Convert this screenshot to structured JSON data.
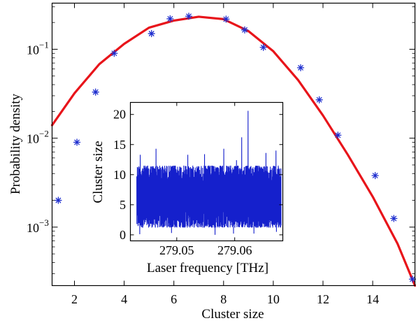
{
  "chart_data": [
    {
      "type": "scatter",
      "title": "",
      "xlabel": "Cluster size",
      "ylabel": "Probability density",
      "x_scale": "linear",
      "y_scale": "log",
      "xlim": [
        1.1,
        15.7
      ],
      "ylim": [
        0.00022,
        0.33
      ],
      "xticks": [
        2,
        4,
        6,
        8,
        10,
        12,
        14
      ],
      "xtick_labels": [
        "2",
        "4",
        "6",
        "8",
        "10",
        "12",
        "14"
      ],
      "yticks": [
        0.001,
        0.01,
        0.1
      ],
      "ytick_labels": [
        {
          "base": "10",
          "exp": "−3"
        },
        {
          "base": "10",
          "exp": "−2"
        },
        {
          "base": "10",
          "exp": "−1"
        }
      ],
      "grid": false,
      "series": [
        {
          "style": "markers",
          "marker": "asterisk",
          "color": "#1f2fcf",
          "points": [
            [
              1.35,
              0.002
            ],
            [
              2.1,
              0.009
            ],
            [
              2.85,
              0.033
            ],
            [
              3.6,
              0.09
            ],
            [
              5.1,
              0.15
            ],
            [
              5.85,
              0.22
            ],
            [
              6.6,
              0.235
            ],
            [
              8.1,
              0.218
            ],
            [
              8.85,
              0.165
            ],
            [
              9.6,
              0.105
            ],
            [
              11.1,
              0.062
            ],
            [
              11.85,
              0.027
            ],
            [
              12.6,
              0.0108
            ],
            [
              14.1,
              0.0038
            ],
            [
              14.85,
              0.00125
            ],
            [
              15.6,
              0.00026
            ]
          ]
        },
        {
          "style": "line",
          "color": "#e8141a",
          "points": [
            [
              1.1,
              0.014
            ],
            [
              2.0,
              0.032
            ],
            [
              3.0,
              0.068
            ],
            [
              4.0,
              0.115
            ],
            [
              5.0,
              0.175
            ],
            [
              6.0,
              0.21
            ],
            [
              7.0,
              0.232
            ],
            [
              8.0,
              0.218
            ],
            [
              9.0,
              0.16
            ],
            [
              10.0,
              0.095
            ],
            [
              11.0,
              0.045
            ],
            [
              12.0,
              0.018
            ],
            [
              13.0,
              0.0065
            ],
            [
              14.0,
              0.0022
            ],
            [
              15.0,
              0.00065
            ],
            [
              15.7,
              0.00022
            ]
          ]
        }
      ]
    },
    {
      "type": "line",
      "title": "",
      "xlabel": "Laser frequency [THz]",
      "ylabel": "Cluster size",
      "xlim": [
        279.042,
        279.0683
      ],
      "ylim": [
        -1,
        22
      ],
      "xticks": [
        279.05,
        279.06
      ],
      "xtick_labels": [
        "279.05",
        "279.06"
      ],
      "yticks": [
        0,
        5,
        10,
        15,
        20
      ],
      "ytick_labels": [
        "0",
        "5",
        "10",
        "15",
        "20"
      ],
      "grid": false,
      "series": [
        {
          "style": "noisy-band",
          "color": "#1520cc",
          "base_low": 1.2,
          "base_high": 11.5,
          "spikes": [
            [
              279.0437,
              13.3
            ],
            [
              279.0464,
              14.3
            ],
            [
              279.0497,
              11.5
            ],
            [
              279.0519,
              13.3
            ],
            [
              279.0548,
              13.4
            ],
            [
              279.0581,
              14.3
            ],
            [
              279.0603,
              12.4
            ],
            [
              279.0612,
              16.2
            ],
            [
              279.0623,
              20.6
            ],
            [
              279.0654,
              13.6
            ],
            [
              279.0671,
              14.0
            ]
          ],
          "dips": [
            [
              279.0436,
              0.1
            ],
            [
              279.0491,
              0.3
            ],
            [
              279.0566,
              0.0
            ],
            [
              279.0598,
              0.2
            ],
            [
              279.0633,
              0.2
            ],
            [
              279.0672,
              0.5
            ]
          ]
        }
      ]
    }
  ]
}
